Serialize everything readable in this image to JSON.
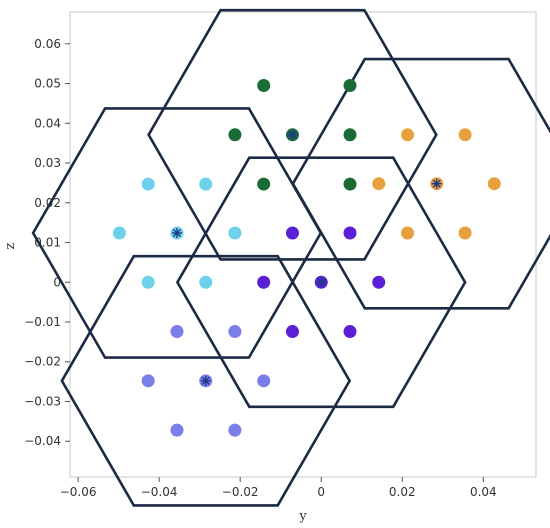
{
  "chart_data": {
    "type": "scatter",
    "title": "",
    "xlabel": "y",
    "ylabel": "z",
    "xlim": [
      -0.062,
      0.053
    ],
    "ylim": [
      -0.049,
      0.068
    ],
    "grid": false,
    "x_ticks": [
      -0.06,
      -0.04,
      -0.02,
      0,
      0.02,
      0.04
    ],
    "x_tick_labels": [
      "−0.06",
      "−0.04",
      "−0.02",
      "0",
      "0.02",
      "0.04"
    ],
    "y_ticks": [
      0.06,
      0.05,
      0.04,
      0.03,
      0.02,
      0.01,
      0,
      -0.01,
      -0.02,
      -0.03,
      -0.04
    ],
    "y_tick_labels": [
      "0.06",
      "0.05",
      "0.04",
      "0.03",
      "0.02",
      "0.01",
      "0",
      "−0.01",
      "−0.02",
      "−0.03",
      "−0.04"
    ],
    "hexagon_radius": 0.0355,
    "hex_outline_color": "#1b2a45",
    "center_marker": "asterisk",
    "center_marker_color": "#1f3a8a",
    "clusters": [
      {
        "color": "#1a6b35",
        "center": [
          -0.0071,
          0.0371
        ],
        "points": [
          [
            -0.0142,
            0.0495
          ],
          [
            0.0071,
            0.0495
          ],
          [
            -0.0213,
            0.0371
          ],
          [
            0.0071,
            0.0371
          ],
          [
            -0.0071,
            0.0371
          ],
          [
            -0.0142,
            0.0247
          ],
          [
            0.0071,
            0.0247
          ]
        ]
      },
      {
        "color": "#e8a03c",
        "center": [
          0.0285,
          0.0248
        ],
        "points": [
          [
            0.0213,
            0.0371
          ],
          [
            0.0355,
            0.0371
          ],
          [
            0.0142,
            0.0248
          ],
          [
            0.0427,
            0.0248
          ],
          [
            0.0285,
            0.0248
          ],
          [
            0.0213,
            0.0124
          ],
          [
            0.0355,
            0.0124
          ]
        ]
      },
      {
        "color": "#6ed1ec",
        "center": [
          -0.0356,
          0.0124
        ],
        "points": [
          [
            -0.0427,
            0.0247
          ],
          [
            -0.0285,
            0.0247
          ],
          [
            -0.0498,
            0.0124
          ],
          [
            -0.0213,
            0.0124
          ],
          [
            -0.0356,
            0.0124
          ],
          [
            -0.0427,
            0.0
          ],
          [
            -0.0285,
            0.0
          ]
        ]
      },
      {
        "color": "#5b1fd6",
        "center": [
          0.0,
          0.0
        ],
        "points": [
          [
            -0.0071,
            0.0124
          ],
          [
            0.0071,
            0.0124
          ],
          [
            -0.0142,
            0.0
          ],
          [
            0.0142,
            0.0
          ],
          [
            0.0,
            0.0
          ],
          [
            -0.0071,
            -0.0124
          ],
          [
            0.0071,
            -0.0124
          ]
        ]
      },
      {
        "color": "#7b7de8",
        "center": [
          -0.0285,
          -0.0248
        ],
        "points": [
          [
            -0.0356,
            -0.0124
          ],
          [
            -0.0213,
            -0.0124
          ],
          [
            -0.0427,
            -0.0248
          ],
          [
            -0.0142,
            -0.0248
          ],
          [
            -0.0285,
            -0.0248
          ],
          [
            -0.0356,
            -0.0372
          ],
          [
            -0.0213,
            -0.0372
          ]
        ]
      }
    ]
  }
}
